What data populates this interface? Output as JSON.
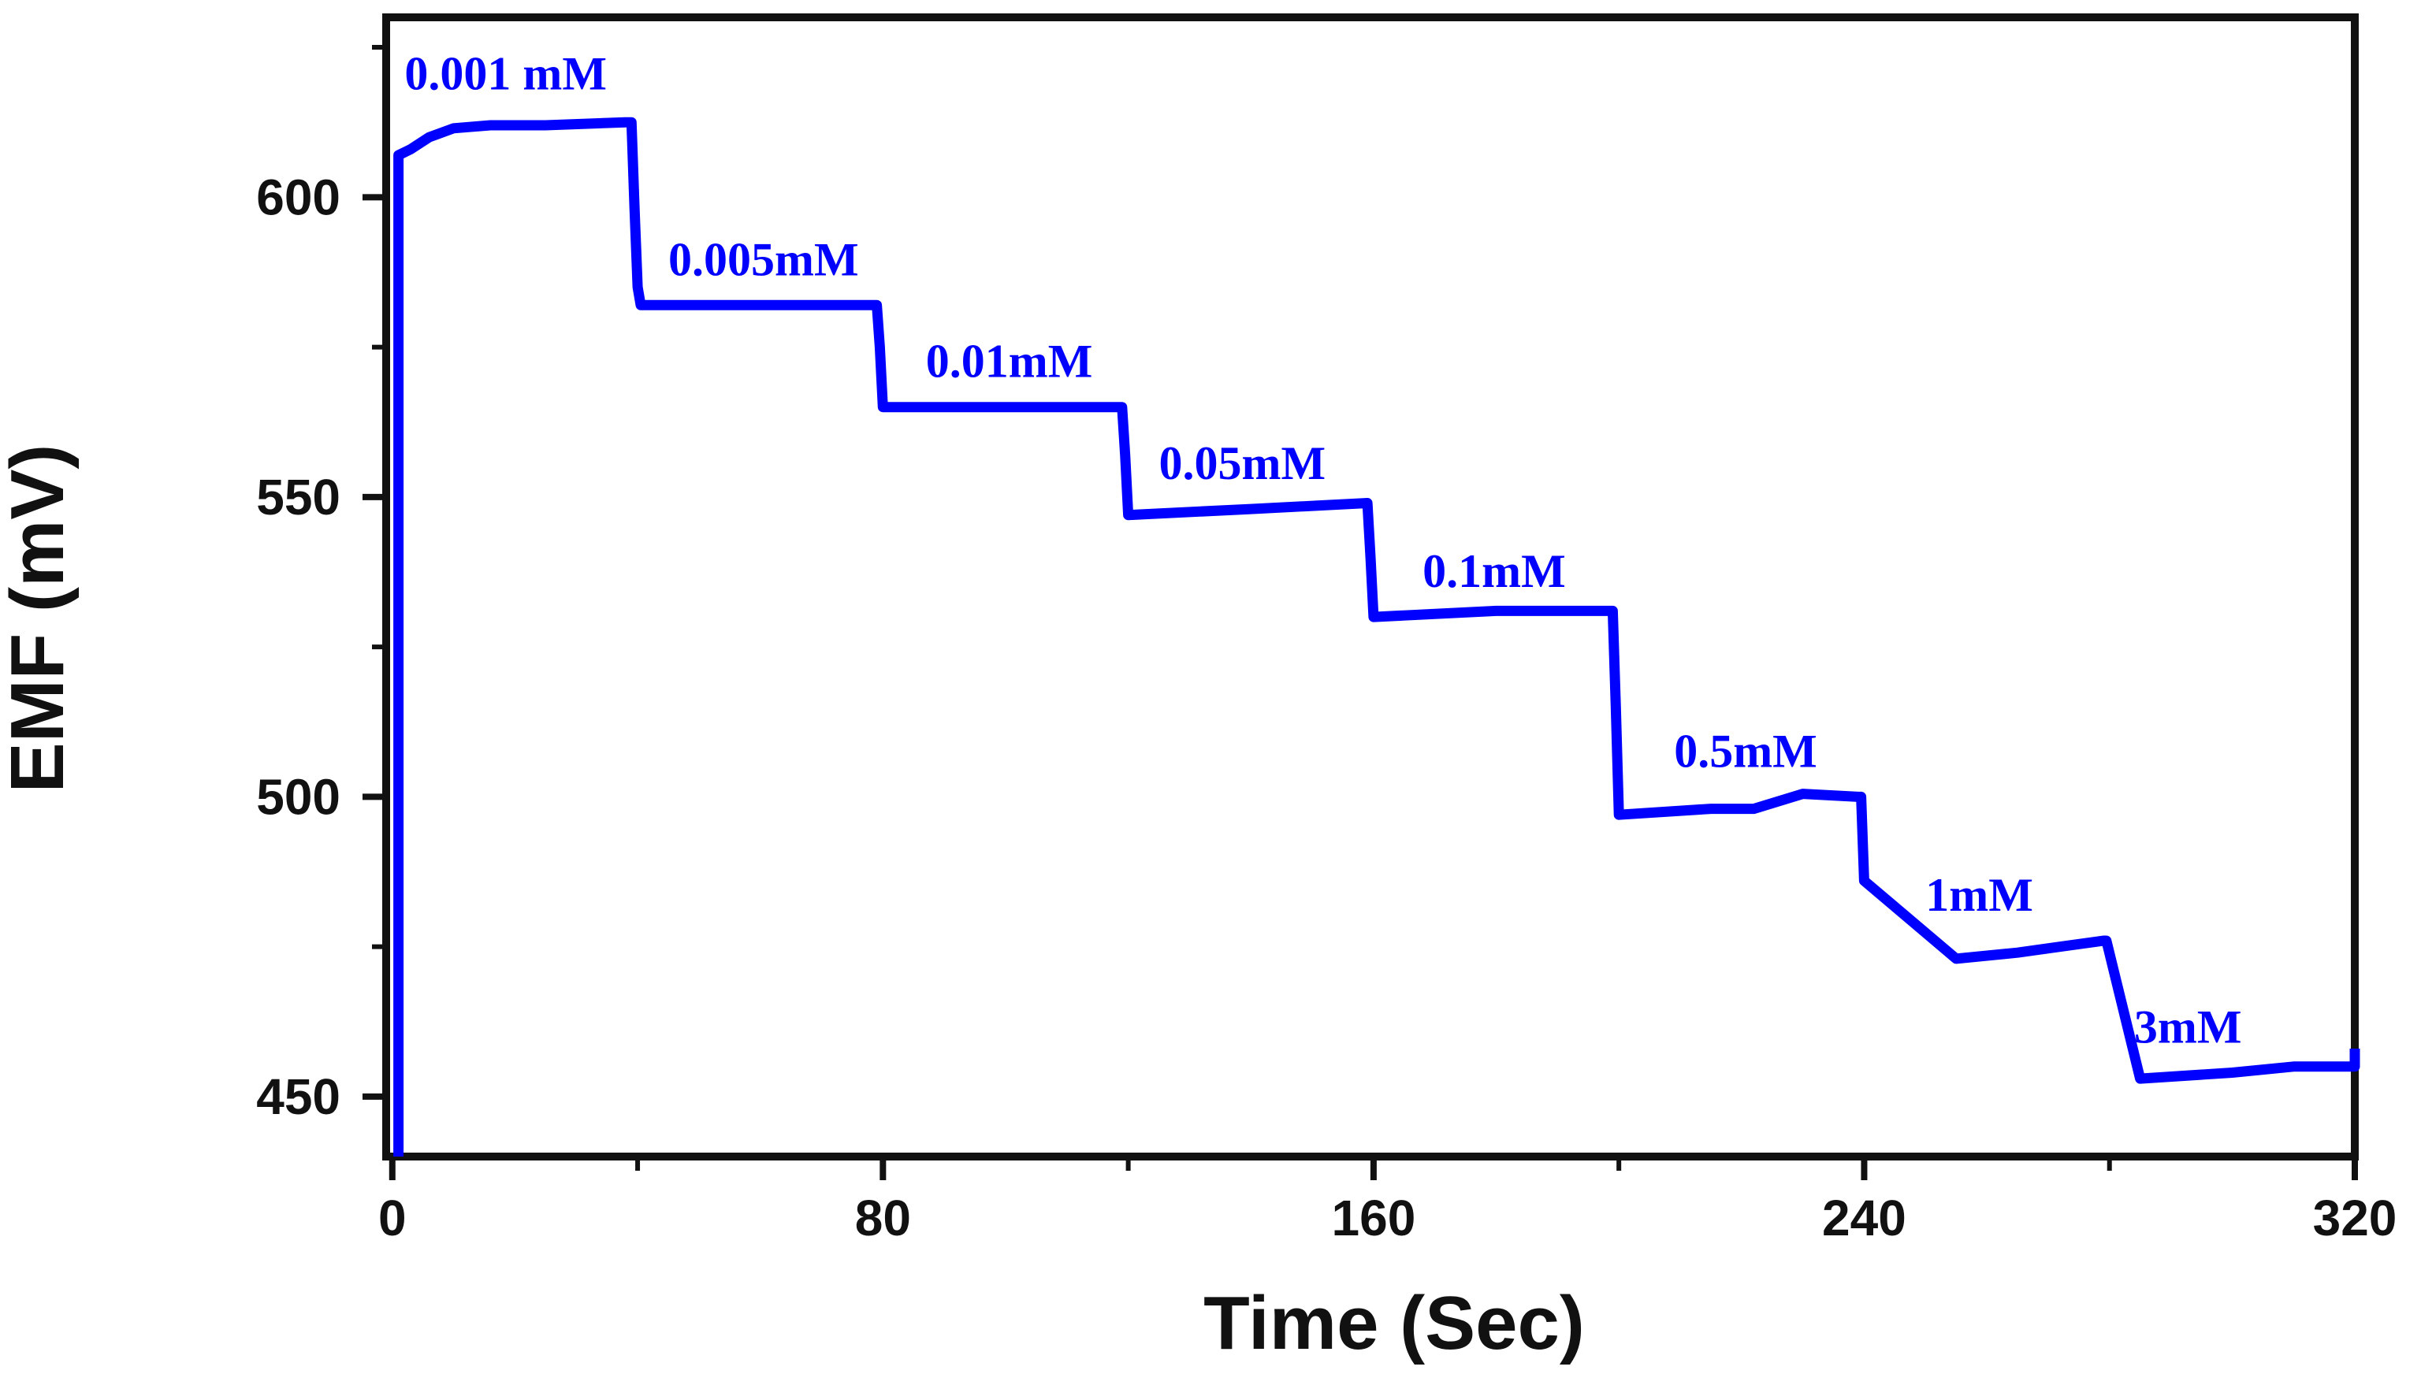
{
  "chart_data": {
    "type": "line",
    "title": "",
    "xlabel": "Time (Sec)",
    "ylabel": "EMF (mV)",
    "xlim": [
      -1,
      320
    ],
    "ylim": [
      440,
      630
    ],
    "x_ticks": [
      0,
      80,
      160,
      240,
      320
    ],
    "y_ticks": [
      450,
      500,
      550,
      600
    ],
    "x_tick_labels": [
      "0",
      "80",
      "160",
      "240",
      "320"
    ],
    "y_tick_labels": [
      "450",
      "500",
      "550",
      "600"
    ],
    "grid": false,
    "legend": null,
    "series_color": "#0000ff",
    "series": [
      {
        "name": "EMF",
        "x": [
          1,
          1,
          3,
          6,
          10,
          16,
          25,
          38,
          39,
          39.5,
          40,
          40.5,
          42,
          60,
          79,
          79.5,
          80,
          100,
          119,
          119.5,
          120,
          140,
          159,
          159.5,
          160,
          180,
          199,
          199.5,
          200,
          215,
          222,
          230,
          239,
          239.5,
          240,
          255,
          265,
          272,
          279,
          279.5,
          285,
          300,
          310,
          320,
          320
        ],
        "y": [
          440,
          607,
          608,
          610,
          611.5,
          612,
          612,
          612.5,
          612.5,
          598,
          585,
          582,
          582,
          582,
          582,
          575,
          565,
          565,
          565,
          557,
          547,
          548,
          549,
          540,
          530,
          531,
          531,
          515,
          497,
          498,
          498,
          500.5,
          500,
          500,
          486,
          473,
          474,
          475,
          476,
          476,
          453,
          454,
          455,
          455,
          458
        ]
      }
    ],
    "annotations": [
      {
        "text": "0.001 mM",
        "x": 2,
        "y": 618
      },
      {
        "text": "0.005mM",
        "x": 45,
        "y": 587
      },
      {
        "text": "0.01mM",
        "x": 87,
        "y": 570
      },
      {
        "text": "0.05mM",
        "x": 125,
        "y": 553
      },
      {
        "text": "0.1mM",
        "x": 168,
        "y": 535
      },
      {
        "text": "0.5mM",
        "x": 209,
        "y": 505
      },
      {
        "text": "1mM",
        "x": 250,
        "y": 481
      },
      {
        "text": "3mM",
        "x": 284,
        "y": 459
      }
    ]
  }
}
